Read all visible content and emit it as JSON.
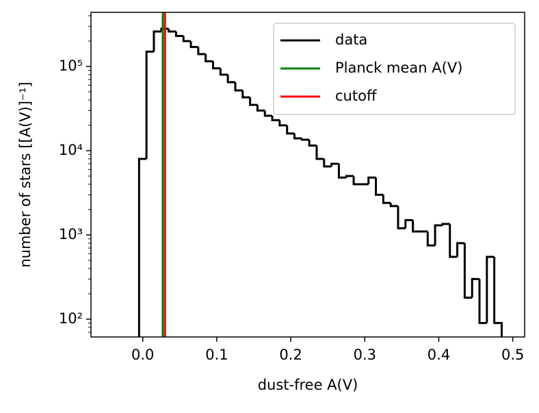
{
  "chart_data": {
    "type": "step-histogram",
    "xlabel": "dust-free A(V)",
    "ylabel": "number of stars [[A(V)]⁻¹]",
    "log_y": true,
    "xlim": [
      -0.07,
      0.516
    ],
    "ylim": [
      61.5,
      439000
    ],
    "xticks": [
      {
        "value": 0,
        "label": "0.0"
      },
      0.1,
      0.2,
      0.3,
      0.4,
      0.5
    ],
    "yticks": [
      {
        "value": 100,
        "label": "10²"
      },
      {
        "value": 1000,
        "label": "10³"
      },
      {
        "value": 10000,
        "label": "10⁴"
      },
      {
        "value": 100000,
        "label": "10⁵"
      }
    ],
    "yminorticks": [
      70,
      80,
      90,
      200,
      300,
      400,
      500,
      600,
      700,
      800,
      900,
      2000,
      3000,
      4000,
      5000,
      6000,
      7000,
      8000,
      9000,
      20000,
      30000,
      40000,
      50000,
      60000,
      70000,
      80000,
      90000,
      200000,
      300000,
      400000
    ],
    "bins": [
      -0.005,
      0.005,
      0.015,
      0.025,
      0.035,
      0.045,
      0.055,
      0.065,
      0.075,
      0.085,
      0.095,
      0.105,
      0.115,
      0.125,
      0.135,
      0.145,
      0.155,
      0.165,
      0.175,
      0.185,
      0.195,
      0.205,
      0.215,
      0.225,
      0.235,
      0.245,
      0.255,
      0.265,
      0.275,
      0.285,
      0.295,
      0.305,
      0.315,
      0.325,
      0.335,
      0.345,
      0.355,
      0.365,
      0.375,
      0.385,
      0.395,
      0.405,
      0.415,
      0.425,
      0.435,
      0.445,
      0.455,
      0.465,
      0.475,
      0.485
    ],
    "series": [
      {
        "name": "data",
        "color": "#000000",
        "values": [
          8000,
          150000,
          260000,
          280000,
          260000,
          230000,
          200000,
          170000,
          140000,
          115000,
          95000,
          80000,
          65000,
          52000,
          43000,
          35000,
          30000,
          26000,
          23000,
          20000,
          16000,
          14000,
          13500,
          11500,
          8000,
          6500,
          7000,
          4800,
          5000,
          4000,
          4000,
          4800,
          3000,
          2400,
          2200,
          1200,
          1500,
          1100,
          1100,
          750,
          1300,
          1350,
          550,
          800,
          180,
          300,
          90,
          550,
          90
        ]
      }
    ],
    "vlines": [
      {
        "name": "Planck mean A(V)",
        "x": 0.027,
        "color": "#008000"
      },
      {
        "name": "cutoff",
        "x": 0.03,
        "color": "#ff0000"
      }
    ],
    "legend": "upper right"
  }
}
